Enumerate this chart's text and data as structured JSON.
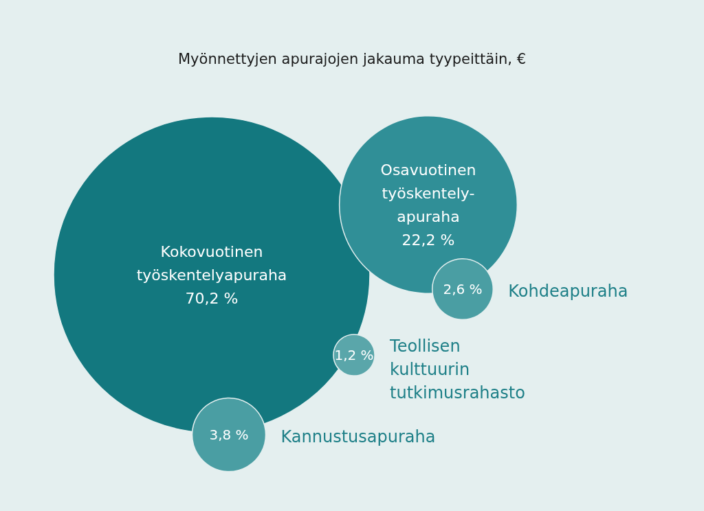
{
  "chart_data": {
    "type": "other",
    "title": "Myönnettyjen apurajojen jakauma tyypeittäin, €",
    "categories": [
      "Kokovuotinen työskentelyapuraha",
      "Osavuotinen työskentely-apuraha",
      "Kohdeapuraha",
      "Teollisen kulttuurin tutkimusrahasto",
      "Kannustusapuraha"
    ],
    "values": [
      70.2,
      22.2,
      2.6,
      1.2,
      3.8
    ],
    "colors": [
      "#13787f",
      "#308f97",
      "#4a9ea3",
      "#5aa6aa",
      "#4a9ea3"
    ],
    "value_labels": [
      "70,2 %",
      "22,2 %",
      "2,6 %",
      "1,2 %",
      "3,8 %"
    ]
  }
}
